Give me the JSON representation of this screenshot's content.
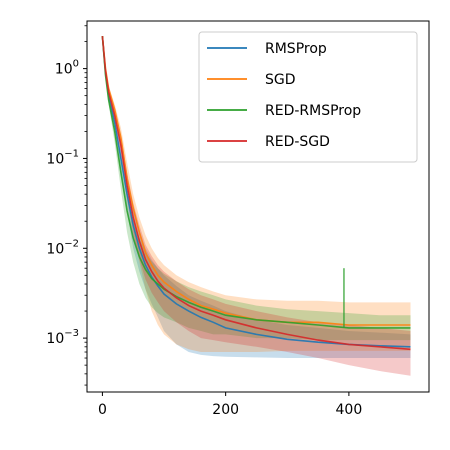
{
  "chart_data": {
    "type": "line",
    "title": "",
    "xlabel": "",
    "ylabel": "",
    "xlim": [
      -25,
      530
    ],
    "ylim_log10": [
      -3.6,
      0.53
    ],
    "y_scale": "log",
    "grid": false,
    "legend_placement": "top-right",
    "x_ticks": [
      {
        "value": 0,
        "label": "0"
      },
      {
        "value": 200,
        "label": "200"
      },
      {
        "value": 400,
        "label": "400"
      }
    ],
    "y_ticks": [
      {
        "value": 1,
        "exp": "0"
      },
      {
        "value": 0.1,
        "exp": "−1"
      },
      {
        "value": 0.01,
        "exp": "−2"
      },
      {
        "value": 0.001,
        "exp": "−3"
      }
    ],
    "y_tick_base": "10",
    "series": [
      {
        "name": "RMSProp",
        "color": "#1f77b4",
        "x": [
          0,
          5,
          10,
          20,
          30,
          40,
          50,
          60,
          70,
          80,
          90,
          100,
          120,
          140,
          160,
          180,
          200,
          250,
          300,
          350,
          400,
          450,
          500
        ],
        "y": [
          2.3,
          0.9,
          0.5,
          0.25,
          0.1,
          0.04,
          0.018,
          0.01,
          0.0065,
          0.0048,
          0.0038,
          0.0031,
          0.0024,
          0.002,
          0.0017,
          0.0015,
          0.0013,
          0.0011,
          0.00097,
          0.0009,
          0.00085,
          0.00082,
          0.0008
        ],
        "lower": [
          2.3,
          0.85,
          0.45,
          0.2,
          0.07,
          0.025,
          0.01,
          0.0055,
          0.0035,
          0.0024,
          0.0017,
          0.0012,
          0.00085,
          0.0007,
          0.00065,
          0.00063,
          0.00062,
          0.00061,
          0.0006,
          0.0006,
          0.0006,
          0.0006,
          0.0006
        ],
        "upper": [
          2.3,
          0.95,
          0.55,
          0.3,
          0.14,
          0.06,
          0.03,
          0.016,
          0.01,
          0.0075,
          0.006,
          0.005,
          0.0038,
          0.003,
          0.0026,
          0.0023,
          0.002,
          0.0016,
          0.0014,
          0.0013,
          0.0012,
          0.00115,
          0.0011
        ]
      },
      {
        "name": "SGD",
        "color": "#ff7f0e",
        "x": [
          0,
          5,
          10,
          20,
          30,
          40,
          50,
          60,
          70,
          80,
          90,
          100,
          120,
          140,
          160,
          180,
          200,
          250,
          300,
          350,
          400,
          450,
          500
        ],
        "y": [
          2.3,
          1.0,
          0.6,
          0.35,
          0.17,
          0.06,
          0.028,
          0.015,
          0.009,
          0.0065,
          0.005,
          0.0042,
          0.0033,
          0.0027,
          0.0023,
          0.0021,
          0.0019,
          0.0016,
          0.0015,
          0.0015,
          0.0014,
          0.0014,
          0.0014
        ],
        "lower": [
          2.3,
          0.95,
          0.55,
          0.3,
          0.12,
          0.04,
          0.016,
          0.007,
          0.0035,
          0.002,
          0.0014,
          0.0011,
          0.00085,
          0.00075,
          0.0007,
          0.0007,
          0.0007,
          0.0007,
          0.00072,
          0.00072,
          0.00072,
          0.00072,
          0.00072
        ],
        "upper": [
          2.3,
          1.05,
          0.65,
          0.4,
          0.22,
          0.09,
          0.04,
          0.022,
          0.014,
          0.01,
          0.0078,
          0.0065,
          0.005,
          0.0042,
          0.0037,
          0.0033,
          0.003,
          0.0027,
          0.0026,
          0.0026,
          0.0025,
          0.0025,
          0.0025
        ]
      },
      {
        "name": "RED-RMSProp",
        "color": "#2ca02c",
        "x": [
          0,
          5,
          10,
          20,
          30,
          40,
          50,
          60,
          70,
          80,
          90,
          100,
          120,
          140,
          160,
          180,
          200,
          250,
          300,
          350,
          400,
          450,
          500
        ],
        "y": [
          2.3,
          0.85,
          0.45,
          0.2,
          0.07,
          0.026,
          0.013,
          0.008,
          0.0058,
          0.0046,
          0.004,
          0.0035,
          0.0029,
          0.0025,
          0.0022,
          0.002,
          0.0018,
          0.0016,
          0.0015,
          0.0014,
          0.0013,
          0.0013,
          0.0013
        ],
        "lower": [
          2.3,
          0.8,
          0.4,
          0.15,
          0.045,
          0.015,
          0.007,
          0.004,
          0.0028,
          0.0022,
          0.0019,
          0.0017,
          0.0015,
          0.0013,
          0.0012,
          0.0011,
          0.0011,
          0.001,
          0.001,
          0.00095,
          0.00095,
          0.00095,
          0.00095
        ],
        "upper": [
          2.3,
          0.9,
          0.5,
          0.25,
          0.1,
          0.04,
          0.02,
          0.013,
          0.009,
          0.0072,
          0.006,
          0.0052,
          0.0043,
          0.0037,
          0.0033,
          0.003,
          0.0027,
          0.0023,
          0.0021,
          0.002,
          0.0019,
          0.0018,
          0.0018
        ],
        "spike": {
          "x": 392,
          "y": 0.006
        }
      },
      {
        "name": "RED-SGD",
        "color": "#d62728",
        "x": [
          0,
          5,
          10,
          20,
          30,
          40,
          50,
          60,
          70,
          80,
          90,
          100,
          120,
          140,
          160,
          180,
          200,
          250,
          300,
          350,
          400,
          450,
          500
        ],
        "y": [
          2.3,
          0.95,
          0.55,
          0.3,
          0.14,
          0.05,
          0.022,
          0.012,
          0.0075,
          0.0055,
          0.0043,
          0.0036,
          0.0028,
          0.0023,
          0.002,
          0.0018,
          0.0016,
          0.0013,
          0.0011,
          0.00095,
          0.00085,
          0.0008,
          0.00075
        ],
        "lower": [
          2.3,
          0.9,
          0.5,
          0.25,
          0.1,
          0.035,
          0.014,
          0.0075,
          0.0045,
          0.0032,
          0.0025,
          0.002,
          0.0015,
          0.0012,
          0.001,
          0.00095,
          0.0009,
          0.0008,
          0.0007,
          0.0006,
          0.0005,
          0.00043,
          0.00038
        ],
        "upper": [
          2.3,
          1.0,
          0.6,
          0.35,
          0.18,
          0.07,
          0.032,
          0.018,
          0.011,
          0.0082,
          0.0065,
          0.0055,
          0.0043,
          0.0035,
          0.003,
          0.0027,
          0.0024,
          0.002,
          0.0017,
          0.0015,
          0.0014,
          0.0013,
          0.0012
        ]
      }
    ]
  }
}
